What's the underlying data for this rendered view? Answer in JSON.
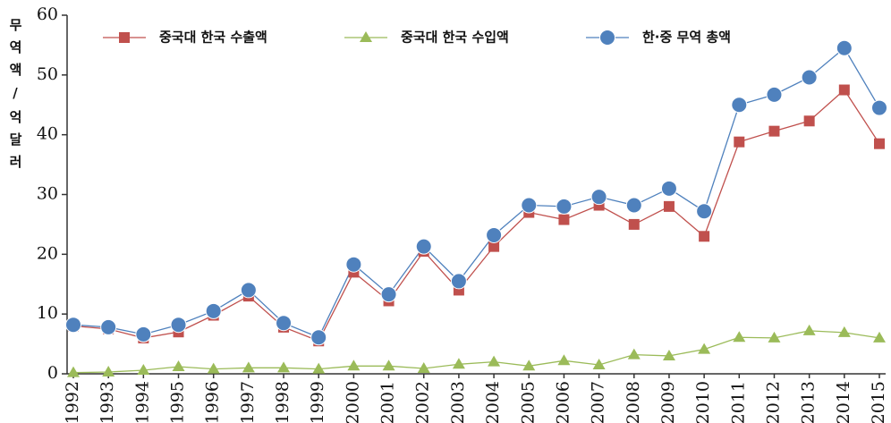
{
  "chart_data": {
    "type": "line",
    "y_label": "무역액/억달러",
    "categories": [
      "1992",
      "1993",
      "1994",
      "1995",
      "1996",
      "1997",
      "1998",
      "1999",
      "2000",
      "2001",
      "2002",
      "2003",
      "2004",
      "2005",
      "2006",
      "2007",
      "2008",
      "2009",
      "2010",
      "2011",
      "2012",
      "2013",
      "2014",
      "2015"
    ],
    "series": [
      {
        "name": "중국대 한국 수출액",
        "color": "#c0504d",
        "marker": "square",
        "values": [
          8,
          7.5,
          6,
          7,
          9.8,
          13,
          7.8,
          5.5,
          17,
          12.2,
          20.5,
          14,
          21.3,
          27,
          25.8,
          28.2,
          25,
          28,
          23,
          38.8,
          40.6,
          42.3,
          47.5,
          38.5
        ]
      },
      {
        "name": "중국대 한국 수입액",
        "color": "#9bbb59",
        "marker": "triangle",
        "values": [
          0.2,
          0.3,
          0.6,
          1.2,
          0.8,
          1.0,
          1.0,
          0.8,
          1.3,
          1.3,
          0.9,
          1.6,
          2.0,
          1.3,
          2.2,
          1.5,
          3.2,
          3.0,
          4.1,
          6.1,
          6.0,
          7.2,
          6.9,
          6.0
        ]
      },
      {
        "name": "한·중 무역 총액",
        "color": "#4f81bd",
        "marker": "circle",
        "values": [
          8.2,
          7.8,
          6.6,
          8.2,
          10.5,
          14,
          8.5,
          6.1,
          18.3,
          13.3,
          21.3,
          15.5,
          23.2,
          28.2,
          28,
          29.6,
          28.2,
          31,
          27.2,
          45,
          46.7,
          49.6,
          54.5,
          44.5
        ]
      }
    ],
    "ylim": [
      0,
      60
    ],
    "yticks": [
      0,
      10,
      20,
      30,
      40,
      50,
      60
    ],
    "grid": false
  }
}
